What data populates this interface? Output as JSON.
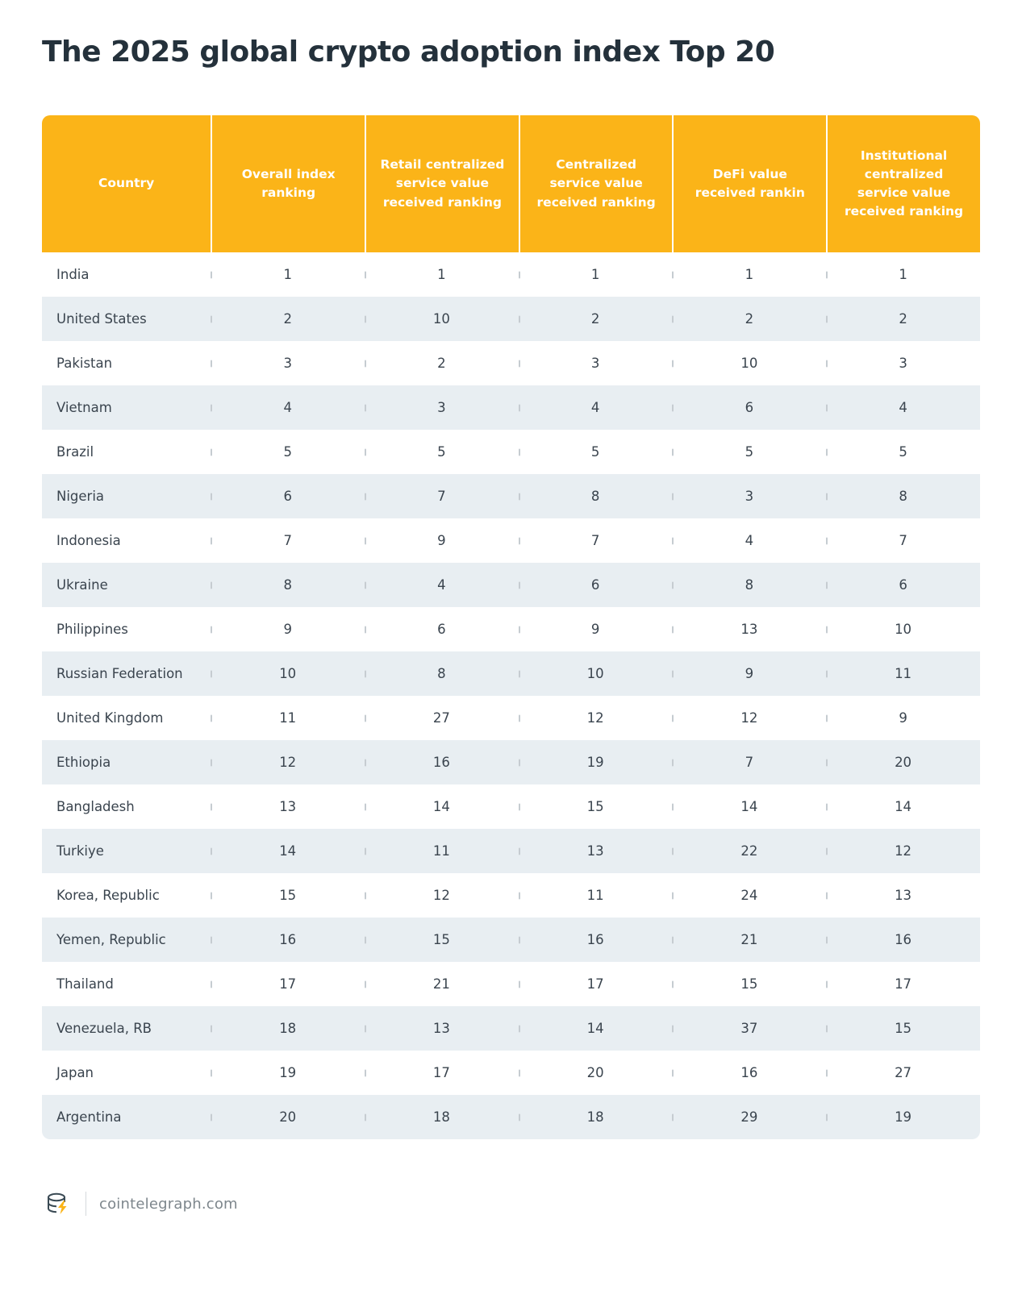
{
  "title": "The 2025 global crypto adoption index Top 20",
  "footer": {
    "brand": "cointelegraph.com",
    "logo_icon": "cointelegraph-coin-icon"
  },
  "colors": {
    "header_bg": "#fbb418",
    "row_alt_bg": "#e8eef2",
    "title_color": "#24313b",
    "text_color": "#3a444e",
    "tick_color": "#c6ccd1",
    "accent_yellow": "#fbb418"
  },
  "chart_data": {
    "type": "table",
    "title": "The 2025 global crypto adoption index Top 20",
    "columns": [
      "Country",
      "Overall index ranking",
      "Retail centralized service value received ranking",
      "Centralized service value received ranking",
      "DeFi value received rankin",
      "Institutional centralized service value received ranking"
    ],
    "rows": [
      [
        "India",
        "1",
        "1",
        "1",
        "1",
        "1"
      ],
      [
        "United States",
        "2",
        "10",
        "2",
        "2",
        "2"
      ],
      [
        "Pakistan",
        "3",
        "2",
        "3",
        "10",
        "3"
      ],
      [
        "Vietnam",
        "4",
        "3",
        "4",
        "6",
        "4"
      ],
      [
        "Brazil",
        "5",
        "5",
        "5",
        "5",
        "5"
      ],
      [
        "Nigeria",
        "6",
        "7",
        "8",
        "3",
        "8"
      ],
      [
        "Indonesia",
        "7",
        "9",
        "7",
        "4",
        "7"
      ],
      [
        "Ukraine",
        "8",
        "4",
        "6",
        "8",
        "6"
      ],
      [
        "Philippines",
        "9",
        "6",
        "9",
        "13",
        "10"
      ],
      [
        "Russian Federation",
        "10",
        "8",
        "10",
        "9",
        "11"
      ],
      [
        "United Kingdom",
        "11",
        "27",
        "12",
        "12",
        "9"
      ],
      [
        "Ethiopia",
        "12",
        "16",
        "19",
        "7",
        "20"
      ],
      [
        "Bangladesh",
        "13",
        "14",
        "15",
        "14",
        "14"
      ],
      [
        "Turkiye",
        "14",
        "11",
        "13",
        "22",
        "12"
      ],
      [
        "Korea, Republic",
        "15",
        "12",
        "11",
        "24",
        "13"
      ],
      [
        "Yemen, Republic",
        "16",
        "15",
        "16",
        "21",
        "16"
      ],
      [
        "Thailand",
        "17",
        "21",
        "17",
        "15",
        "17"
      ],
      [
        "Venezuela, RB",
        "18",
        "13",
        "14",
        "37",
        "15"
      ],
      [
        "Japan",
        "19",
        "17",
        "20",
        "16",
        "27"
      ],
      [
        "Argentina",
        "20",
        "18",
        "18",
        "29",
        "19"
      ]
    ]
  }
}
